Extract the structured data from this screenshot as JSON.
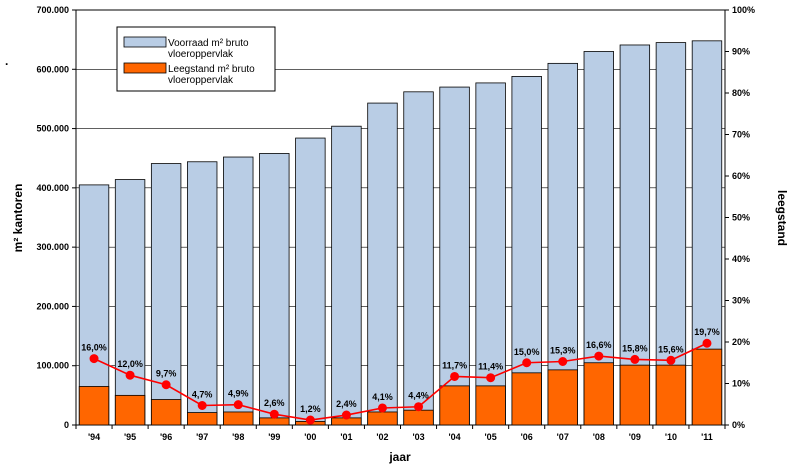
{
  "chart_data": {
    "type": "bar",
    "categories": [
      "'94",
      "'95",
      "'96",
      "'97",
      "'98",
      "'99",
      "'00",
      "'01",
      "'02",
      "'03",
      "'04",
      "'05",
      "'06",
      "'07",
      "'08",
      "'09",
      "'10",
      "'11"
    ],
    "series": [
      {
        "name": "Voorraad m² bruto vloeroppervlak",
        "axis": "left",
        "kind": "bar",
        "color": "#b9cde5",
        "values": [
          405000,
          414000,
          441000,
          444000,
          452000,
          458000,
          484000,
          504000,
          543000,
          562000,
          570000,
          577000,
          588000,
          610000,
          630000,
          641000,
          645000,
          648000
        ]
      },
      {
        "name": "Leegstand m² bruto vloeroppervlak",
        "axis": "left",
        "kind": "bar",
        "color": "#ff6600",
        "values": [
          65000,
          50000,
          43000,
          21000,
          22000,
          12000,
          6000,
          12000,
          22000,
          25000,
          66000,
          66000,
          88000,
          93000,
          105000,
          101000,
          101000,
          128000
        ]
      },
      {
        "name": "",
        "axis": "right",
        "kind": "line",
        "color": "#ff0000",
        "values": [
          16.0,
          12.0,
          9.7,
          4.7,
          4.9,
          2.6,
          1.2,
          2.4,
          4.1,
          4.4,
          11.7,
          11.4,
          15.0,
          15.3,
          16.6,
          15.8,
          15.6,
          19.7
        ],
        "labels": [
          "16,0%",
          "12,0%",
          "9,7%",
          "4,7%",
          "4,9%",
          "2,6%",
          "1,2%",
          "2,4%",
          "4,1%",
          "4,4%",
          "11,7%",
          "11,4%",
          "15,0%",
          "15,3%",
          "16,6%",
          "15,8%",
          "15,6%",
          "19,7%"
        ]
      }
    ],
    "xlabel": "jaar",
    "ylabel": "m² kantoren",
    "y2label": "leegstand",
    "ylim": [
      0,
      700000
    ],
    "y2lim": [
      0,
      100
    ],
    "yticks": [
      "0",
      "100.000",
      "200.000",
      "300.000",
      "400.000",
      "500.000",
      "600.000",
      "700.000"
    ],
    "y2ticks": [
      "0%",
      "10%",
      "20%",
      "30%",
      "40%",
      "50%",
      "60%",
      "70%",
      "80%",
      "90%",
      "100%"
    ],
    "grid": true,
    "legend": {
      "placement": "top-left",
      "entries": [
        {
          "line1": "Voorraad m² bruto",
          "line2": "vloeroppervlak",
          "color": "#b9cde5"
        },
        {
          "line1": "Leegstand m² bruto",
          "line2": "vloeroppervlak",
          "color": "#ff6600"
        }
      ]
    },
    "side_mark": "."
  }
}
